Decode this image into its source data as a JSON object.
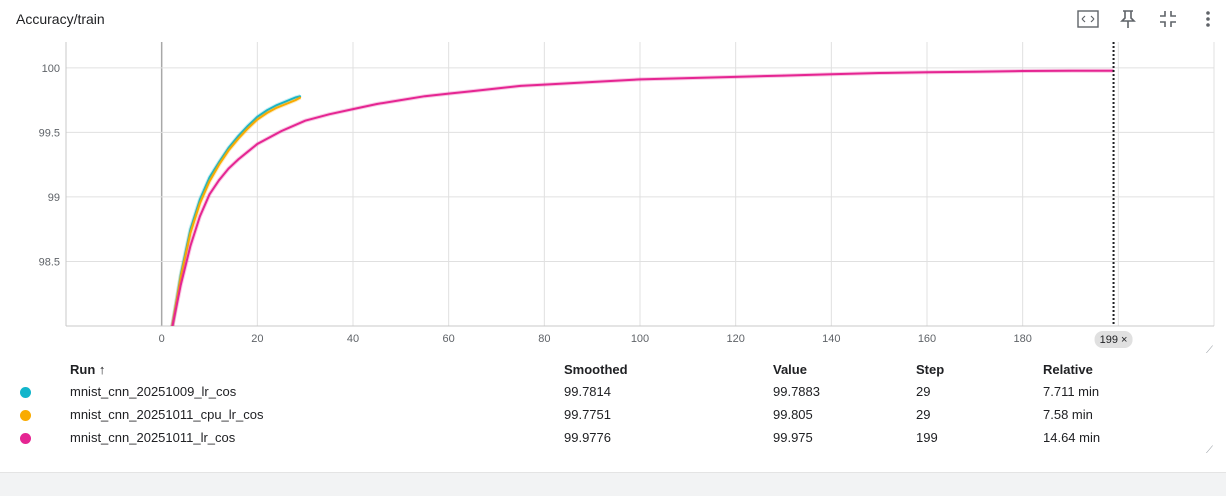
{
  "header": {
    "title": "Accuracy/train"
  },
  "toolbar": {
    "icons": [
      "fit-domain-icon",
      "pin-icon",
      "collapse-icon",
      "more-vert-icon"
    ]
  },
  "chart_data": {
    "type": "line",
    "title": "",
    "xlabel": "",
    "ylabel": "",
    "xlim": [
      -20,
      220
    ],
    "ylim": [
      98.0,
      100.2
    ],
    "x_ticks": [
      "0",
      "20",
      "40",
      "60",
      "80",
      "100",
      "120",
      "140",
      "160",
      "180"
    ],
    "x_tick_values": [
      0,
      20,
      40,
      60,
      80,
      100,
      120,
      140,
      160,
      180
    ],
    "y_ticks": [
      "98.5",
      "99",
      "99.5",
      "100"
    ],
    "y_tick_values": [
      98.5,
      99,
      99.5,
      100
    ],
    "grid": true,
    "cursor_step": "199 ×",
    "cursor_value": 199,
    "series": [
      {
        "name": "mnist_cnn_20251009_lr_cos",
        "color": "#12b5cb",
        "x": [
          2,
          4,
          6,
          8,
          10,
          12,
          14,
          16,
          18,
          20,
          22,
          24,
          26,
          28,
          29
        ],
        "values": [
          97.95,
          98.4,
          98.75,
          98.98,
          99.15,
          99.27,
          99.38,
          99.47,
          99.55,
          99.62,
          99.67,
          99.71,
          99.74,
          99.77,
          99.78
        ]
      },
      {
        "name": "mnist_cnn_20251011_cpu_lr_cos",
        "color": "#f9ab00",
        "x": [
          2,
          4,
          6,
          8,
          10,
          12,
          14,
          16,
          18,
          20,
          22,
          24,
          26,
          28,
          29
        ],
        "values": [
          97.95,
          98.38,
          98.72,
          98.95,
          99.12,
          99.25,
          99.36,
          99.45,
          99.53,
          99.6,
          99.65,
          99.69,
          99.72,
          99.75,
          99.77
        ]
      },
      {
        "name": "mnist_cnn_20251011_lr_cos",
        "color": "#e52592",
        "x": [
          2,
          4,
          6,
          8,
          10,
          12,
          14,
          16,
          18,
          20,
          25,
          30,
          35,
          40,
          45,
          50,
          55,
          60,
          65,
          70,
          75,
          80,
          90,
          100,
          110,
          120,
          130,
          140,
          150,
          160,
          170,
          180,
          190,
          199
        ],
        "values": [
          97.95,
          98.32,
          98.62,
          98.85,
          99.02,
          99.13,
          99.22,
          99.29,
          99.35,
          99.41,
          99.51,
          99.59,
          99.64,
          99.68,
          99.72,
          99.75,
          99.78,
          99.8,
          99.82,
          99.84,
          99.86,
          99.87,
          99.89,
          99.91,
          99.92,
          99.93,
          99.94,
          99.95,
          99.96,
          99.965,
          99.97,
          99.975,
          99.977,
          99.978
        ]
      }
    ]
  },
  "table": {
    "headers": {
      "run": "Run ↑",
      "smoothed": "Smoothed",
      "value": "Value",
      "step": "Step",
      "relative": "Relative"
    },
    "rows": [
      {
        "run": "mnist_cnn_20251009_lr_cos",
        "smoothed": "99.7814",
        "value": "99.7883",
        "step": "29",
        "relative": "7.711 min",
        "color": "#12b5cb"
      },
      {
        "run": "mnist_cnn_20251011_cpu_lr_cos",
        "smoothed": "99.7751",
        "value": "99.805",
        "step": "29",
        "relative": "7.58 min",
        "color": "#f9ab00"
      },
      {
        "run": "mnist_cnn_20251011_lr_cos",
        "smoothed": "99.9776",
        "value": "99.975",
        "step": "199",
        "relative": "14.64 min",
        "color": "#e52592"
      }
    ]
  }
}
